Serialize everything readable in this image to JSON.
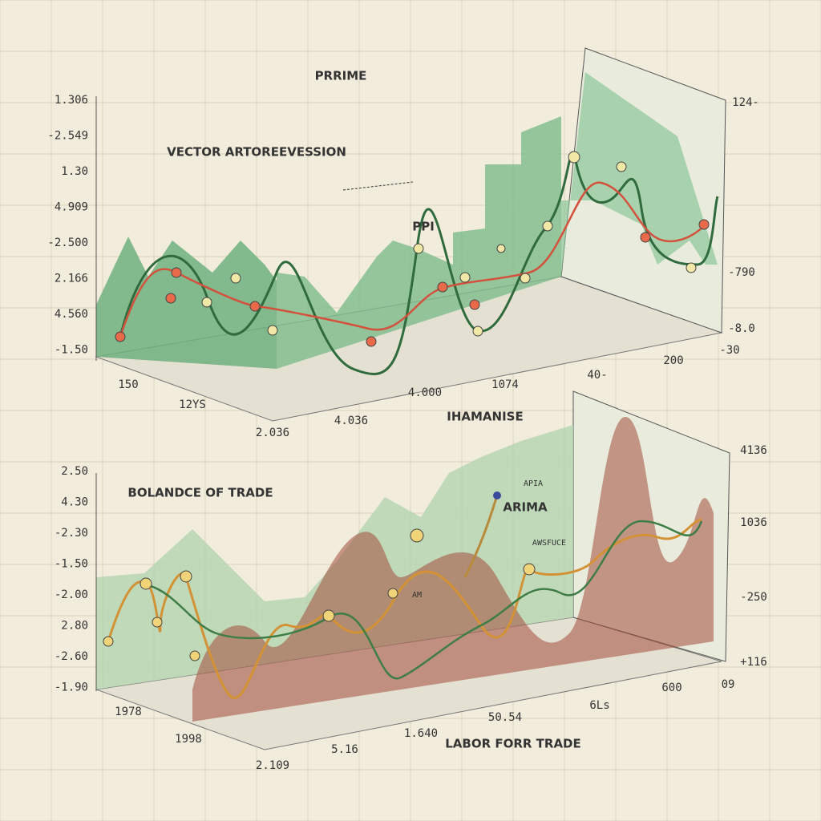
{
  "top": {
    "title": "PRRIME",
    "subtitle": "VECTOR ARTOREEVESSION",
    "annotation": "PPI",
    "left_labels": [
      "1.306",
      "-2.549",
      "1.30",
      "4.909",
      "-2.500",
      "2.166",
      "4.560",
      "-1.50"
    ],
    "right_labels": [
      "124-",
      "-790",
      "-8.0"
    ],
    "bottom_labels": [
      "150",
      "12YS",
      "2.036",
      "4.036",
      "4.000",
      "1074",
      "40-",
      "200",
      "-30"
    ]
  },
  "bottom": {
    "title": "IHAMANISE",
    "subtitle": "BOLANDCE OF TRADE",
    "annotations": [
      "ARIMA",
      "APIA",
      "AWSFUCE",
      "AM"
    ],
    "left_labels": [
      "2.50",
      "4.30",
      "-2.30",
      "-1.50",
      "-2.00",
      "2.80",
      "-2.60",
      "-1.90"
    ],
    "right_labels": [
      "4136",
      "1036",
      "-250",
      "+116"
    ],
    "bottom_labels": [
      "1978",
      "1998",
      "2.109",
      "5.16",
      "1.640",
      "50.54",
      "6Ls",
      "600",
      "09"
    ],
    "footer": "LABOR FORR TRADE"
  }
}
